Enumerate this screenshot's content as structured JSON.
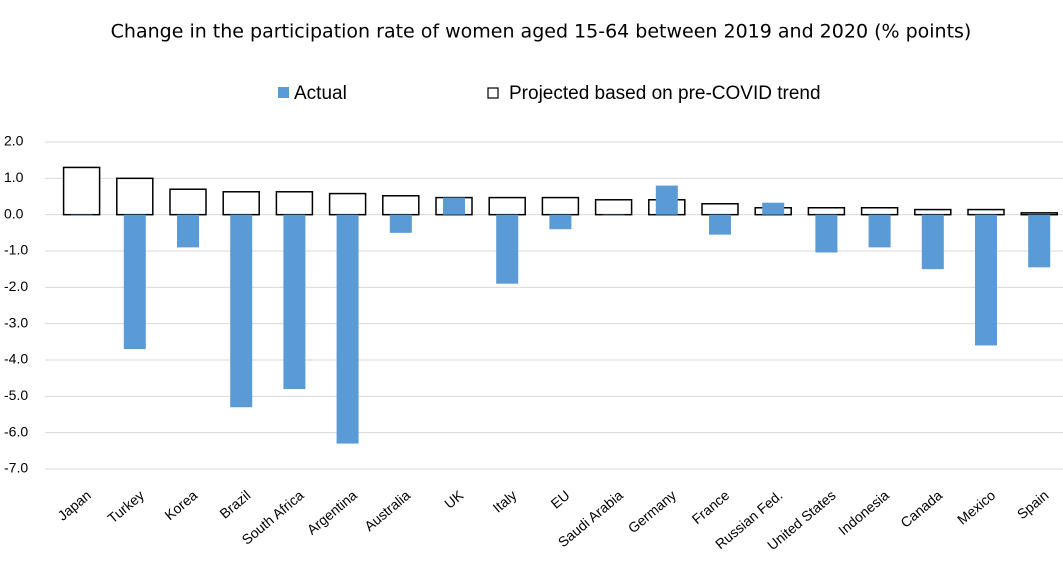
{
  "chart_data": {
    "type": "bar",
    "title": "Change in the participation rate of women aged 15-64 between 2019 and 2020 (% points)",
    "categories": [
      "Japan",
      "Turkey",
      "Korea",
      "Brazil",
      "South Africa",
      "Argentina",
      "Australia",
      "UK",
      "Italy",
      "EU",
      "Saudi Arabia",
      "Germany",
      "France",
      "Russian Fed.",
      "United States",
      "Indonesia",
      "Canada",
      "Mexico",
      "Spain"
    ],
    "series": [
      {
        "name": "Actual",
        "color": "#5b9bd5",
        "values": [
          0.0,
          -3.7,
          -0.9,
          -5.3,
          -4.8,
          -6.3,
          -0.5,
          0.47,
          -1.9,
          -0.4,
          0.0,
          0.8,
          -0.55,
          0.33,
          -1.04,
          -0.9,
          -1.5,
          -3.6,
          -1.45
        ]
      },
      {
        "name": "Projected based on pre-COVID trend",
        "color": "#ffffff",
        "values": [
          1.3,
          1.0,
          0.7,
          0.63,
          0.63,
          0.58,
          0.52,
          0.47,
          0.47,
          0.47,
          0.41,
          0.41,
          0.3,
          0.19,
          0.19,
          0.19,
          0.14,
          0.14,
          0.05
        ]
      }
    ],
    "ylim": [
      -7,
      2
    ],
    "yticks": [
      {
        "value": 2,
        "label": "2.0"
      },
      {
        "value": 1,
        "label": "1.0"
      },
      {
        "value": 0,
        "label": "0.0"
      },
      {
        "value": -1,
        "label": "-1.0"
      },
      {
        "value": -2,
        "label": "-2.0"
      },
      {
        "value": -3,
        "label": "-3.0"
      },
      {
        "value": -4,
        "label": "-4.0"
      },
      {
        "value": -5,
        "label": "-5.0"
      },
      {
        "value": -6,
        "label": "-6.0"
      },
      {
        "value": -7,
        "label": "-7.0"
      }
    ],
    "grid": true
  }
}
